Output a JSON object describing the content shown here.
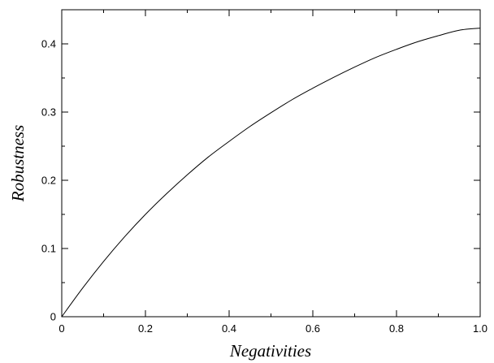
{
  "chart_data": {
    "type": "line",
    "title": "",
    "xlabel": "Negativities",
    "ylabel": "Robustness",
    "xlim": [
      0,
      1.0
    ],
    "ylim": [
      0,
      0.45
    ],
    "x_ticks": [
      "0",
      "0.2",
      "0.4",
      "0.6",
      "0.8",
      "1.0"
    ],
    "y_ticks": [
      "0",
      "0.1",
      "0.2",
      "0.3",
      "0.4"
    ],
    "grid": false,
    "legend": "none",
    "line_color": "#000000",
    "series": [
      {
        "x": [
          0,
          0.05,
          0.1,
          0.15,
          0.2,
          0.25,
          0.3,
          0.35,
          0.4,
          0.45,
          0.5,
          0.55,
          0.6,
          0.65,
          0.7,
          0.75,
          0.8,
          0.85,
          0.9,
          0.95,
          1.0
        ],
        "y": [
          0,
          0.042,
          0.081,
          0.117,
          0.15,
          0.18,
          0.208,
          0.234,
          0.257,
          0.279,
          0.299,
          0.318,
          0.335,
          0.351,
          0.366,
          0.38,
          0.392,
          0.403,
          0.412,
          0.42,
          0.423
        ]
      }
    ]
  }
}
